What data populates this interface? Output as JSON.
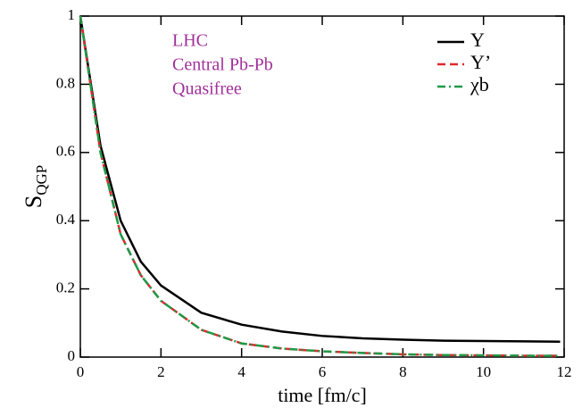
{
  "chart_data": {
    "type": "line",
    "x_label": "time [fm/c]",
    "y_label": {
      "main": "S",
      "sub": "QGP"
    },
    "annotations": [
      "LHC",
      "Central Pb-Pb",
      "Quasifree"
    ],
    "annotation_color": "#a0309a",
    "x": [
      0,
      0.5,
      1,
      1.5,
      2,
      3,
      4,
      5,
      6,
      7,
      8,
      9,
      10,
      11,
      11.9
    ],
    "series": [
      {
        "name": "Υ",
        "color": "#000000",
        "dash": "",
        "values": [
          1,
          0.62,
          0.4,
          0.28,
          0.21,
          0.13,
          0.095,
          0.075,
          0.062,
          0.055,
          0.051,
          0.048,
          0.047,
          0.046,
          0.045
        ]
      },
      {
        "name": "Υ’",
        "color": "#e0282d",
        "dash": "9 5",
        "values": [
          1,
          0.6,
          0.36,
          0.24,
          0.165,
          0.08,
          0.04,
          0.025,
          0.017,
          0.012,
          0.008,
          0.006,
          0.005,
          0.004,
          0.004
        ]
      },
      {
        "name": "χb",
        "color": "#1e9a48",
        "dash": "9 4 2 4",
        "values": [
          1,
          0.6,
          0.36,
          0.24,
          0.165,
          0.08,
          0.04,
          0.025,
          0.017,
          0.012,
          0.008,
          0.006,
          0.005,
          0.004,
          0.004
        ]
      }
    ],
    "xlim": [
      0,
      12
    ],
    "xticks": [
      0,
      2,
      4,
      6,
      8,
      10,
      12
    ],
    "ylim": [
      0,
      1
    ],
    "yticks": [
      0,
      0.2,
      0.4,
      0.6,
      0.8,
      1
    ],
    "legend": "top-right"
  }
}
